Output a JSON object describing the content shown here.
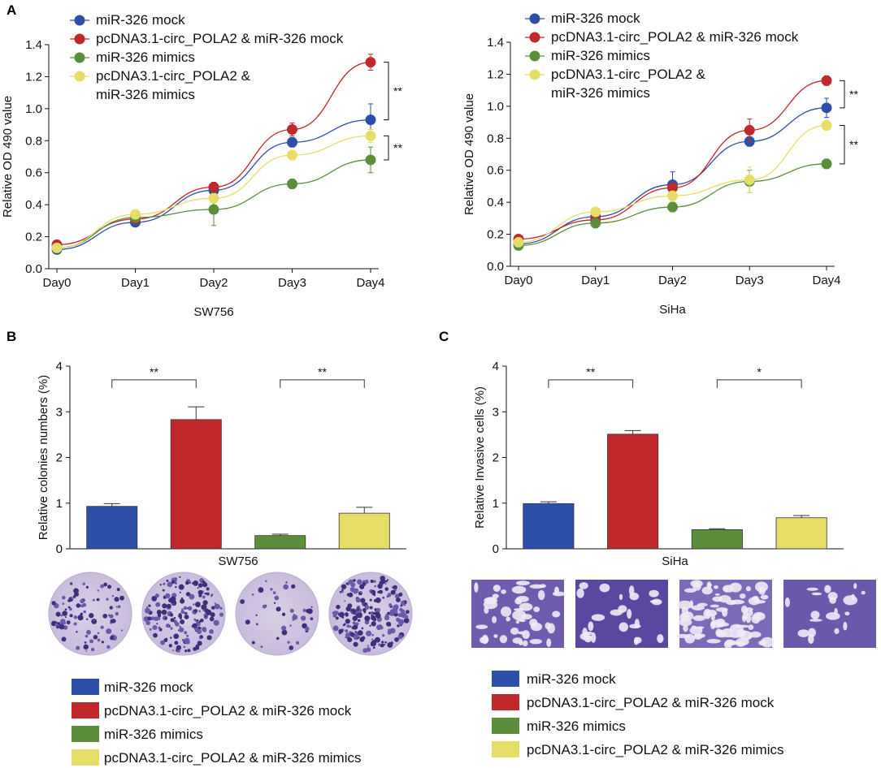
{
  "panel_labels": {
    "a": "A",
    "b": "B",
    "c": "C"
  },
  "colors": {
    "blue": "#2e4fa8",
    "red": "#c0282b",
    "green": "#5b8e3a",
    "yellow": "#e6dc68"
  },
  "dish_images": {
    "sw756": [
      "dish-1",
      "dish-2",
      "dish-3",
      "dish-4"
    ],
    "siha": [
      "field-1",
      "field-2",
      "field-3",
      "field-4"
    ]
  },
  "chart_data": [
    {
      "id": "a1",
      "type": "line",
      "title": "",
      "xlabel": "SW756",
      "ylabel": "Relative OD 490 value",
      "categories": [
        "Day0",
        "Day1",
        "Day2",
        "Day3",
        "Day4"
      ],
      "ylim": [
        0,
        1.4
      ],
      "yticks": [
        "0.0",
        "0.2",
        "0.4",
        "0.6",
        "0.8",
        "1.0",
        "1.2",
        "1.4"
      ],
      "series": [
        {
          "name": "miR-326 mock",
          "color": "#2e4fa8",
          "values": [
            0.12,
            0.29,
            0.49,
            0.79,
            0.93
          ],
          "errors": [
            0.01,
            0.01,
            0.02,
            0.03,
            0.1
          ]
        },
        {
          "name": "pcDNA3.1-circ_POLA2 & miR-326 mock",
          "color": "#c0282b",
          "values": [
            0.15,
            0.31,
            0.51,
            0.87,
            1.29
          ],
          "errors": [
            0.01,
            0.01,
            0.03,
            0.04,
            0.05
          ]
        },
        {
          "name": "miR-326 mimics",
          "color": "#5b8e3a",
          "values": [
            0.13,
            0.32,
            0.37,
            0.53,
            0.68
          ],
          "errors": [
            0.01,
            0.01,
            0.1,
            0.03,
            0.08
          ]
        },
        {
          "name": "pcDNA3.1-circ_POLA2 & miR-326 mimics",
          "color": "#e6dc68",
          "values": [
            0.13,
            0.34,
            0.44,
            0.71,
            0.83
          ],
          "errors": [
            0.01,
            0.02,
            0.03,
            0.03,
            0.04
          ]
        }
      ],
      "legend_lines": [
        "miR-326 mock",
        "pcDNA3.1-circ_POLA2 & miR-326 mock",
        "miR-326 mimics",
        "pcDNA3.1-circ_POLA2 &",
        "miR-326 mimics"
      ],
      "significance": [
        {
          "label": "**",
          "from": 1.29,
          "to": 0.93
        },
        {
          "label": "**",
          "from": 0.83,
          "to": 0.68
        }
      ]
    },
    {
      "id": "a2",
      "type": "line",
      "title": "",
      "xlabel": "SiHa",
      "ylabel": "Relative OD 490 value",
      "categories": [
        "Day0",
        "Day1",
        "Day2",
        "Day3",
        "Day4"
      ],
      "ylim": [
        0,
        1.4
      ],
      "yticks": [
        "0.0",
        "0.2",
        "0.4",
        "0.6",
        "0.8",
        "1.0",
        "1.2",
        "1.4"
      ],
      "series": [
        {
          "name": "miR-326 mock",
          "color": "#2e4fa8",
          "values": [
            0.14,
            0.31,
            0.51,
            0.78,
            0.99
          ],
          "errors": [
            0.01,
            0.02,
            0.08,
            0.03,
            0.06
          ]
        },
        {
          "name": "pcDNA3.1-circ_POLA2 & miR-326 mock",
          "color": "#c0282b",
          "values": [
            0.17,
            0.29,
            0.49,
            0.85,
            1.16
          ],
          "errors": [
            0.01,
            0.02,
            0.03,
            0.07,
            0.03
          ]
        },
        {
          "name": "miR-326 mimics",
          "color": "#5b8e3a",
          "values": [
            0.13,
            0.27,
            0.37,
            0.53,
            0.64
          ],
          "errors": [
            0.01,
            0.03,
            0.03,
            0.07,
            0.03
          ]
        },
        {
          "name": "pcDNA3.1-circ_POLA2 & miR-326 mimics",
          "color": "#e6dc68",
          "values": [
            0.15,
            0.34,
            0.44,
            0.54,
            0.88
          ],
          "errors": [
            0.01,
            0.02,
            0.03,
            0.08,
            0.03
          ]
        }
      ],
      "legend_lines": [
        "miR-326 mock",
        "pcDNA3.1-circ_POLA2 & miR-326 mock",
        "miR-326 mimics",
        "pcDNA3.1-circ_POLA2 &",
        "miR-326 mimics"
      ],
      "significance": [
        {
          "label": "**",
          "from": 1.16,
          "to": 0.99
        },
        {
          "label": "**",
          "from": 0.88,
          "to": 0.64
        }
      ]
    },
    {
      "id": "b",
      "type": "bar",
      "title": "",
      "xlabel": "SW756",
      "ylabel": "Relative colonies numbers (%)",
      "categories": [
        "miR-326 mock",
        "pcDNA3.1-circ_POLA2 & miR-326 mock",
        "miR-326 mimics",
        "pcDNA3.1-circ_POLA2 & miR-326 mimics"
      ],
      "values": [
        0.93,
        2.83,
        0.29,
        0.78
      ],
      "errors": [
        0.06,
        0.28,
        0.03,
        0.13
      ],
      "colors": [
        "#2e4fa8",
        "#c0282b",
        "#5b8e3a",
        "#e6dc68"
      ],
      "ylim": [
        0,
        4
      ],
      "yticks": [
        "0",
        "1",
        "2",
        "3",
        "4"
      ],
      "significance": [
        {
          "label": "**",
          "bars": [
            0,
            1
          ],
          "y": 3.7
        },
        {
          "label": "**",
          "bars": [
            2,
            3
          ],
          "y": 3.7
        }
      ]
    },
    {
      "id": "c",
      "type": "bar",
      "title": "",
      "xlabel": "SiHa",
      "ylabel": "Relative Invasive cells (%)",
      "categories": [
        "miR-326 mock",
        "pcDNA3.1-circ_POLA2 & miR-326 mock",
        "miR-326 mimics",
        "pcDNA3.1-circ_POLA2 & miR-326 mimics"
      ],
      "values": [
        0.99,
        2.51,
        0.42,
        0.68
      ],
      "errors": [
        0.04,
        0.08,
        0.02,
        0.05
      ],
      "colors": [
        "#2e4fa8",
        "#c0282b",
        "#5b8e3a",
        "#e6dc68"
      ],
      "ylim": [
        0,
        4
      ],
      "yticks": [
        "0",
        "1",
        "2",
        "3",
        "4"
      ],
      "significance": [
        {
          "label": "**",
          "bars": [
            0,
            1
          ],
          "y": 3.7
        },
        {
          "label": "*",
          "bars": [
            2,
            3
          ],
          "y": 3.7
        }
      ]
    }
  ]
}
